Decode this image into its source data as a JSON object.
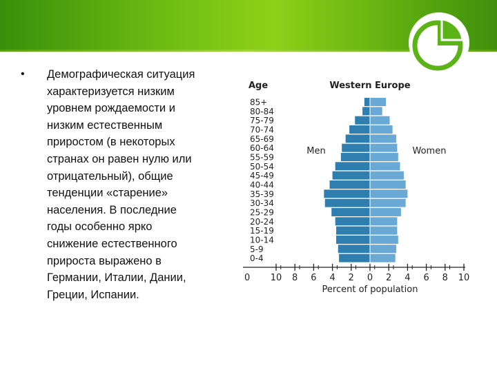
{
  "slide": {
    "bullet_symbol": "•",
    "bullet_text": "Демографическая ситуация\nхарактеризуется низким\nуровнем рождаемости и\nнизким естественным\nприростом (в некоторых\nстранах он равен нулю или\nотрицательный), общие\nтенденции «старение»\nнаселения. В последние\nгоды особенно ярко\nснижение естественного\nприроста выражено в\nГермании, Италии, Дании,\nГреции, Испании."
  },
  "colors": {
    "men_bar": "#2e7fb0",
    "women_bar": "#6aa9d6",
    "header_green": "#6fbf12",
    "logo_green": "#5cb317"
  },
  "chart_data": {
    "type": "bar",
    "orientation": "horizontal",
    "title": "Western Europe",
    "age_label": "Age",
    "xlabel": "Percent of population",
    "left_label": "Men",
    "right_label": "Women",
    "categories": [
      "85+",
      "80-84",
      "75-79",
      "70-74",
      "65-69",
      "60-64",
      "55-59",
      "50-54",
      "45-49",
      "40-44",
      "35-39",
      "30-34",
      "25-29",
      "20-24",
      "15-19",
      "10-14",
      "5-9",
      "0-4"
    ],
    "series": [
      {
        "name": "Men",
        "values": [
          0.6,
          0.8,
          1.6,
          2.2,
          2.6,
          3.0,
          3.1,
          3.7,
          4.0,
          4.3,
          4.9,
          4.8,
          4.1,
          3.7,
          3.6,
          3.6,
          3.4,
          3.3
        ]
      },
      {
        "name": "Women",
        "values": [
          1.7,
          1.3,
          2.1,
          2.4,
          2.8,
          2.9,
          3.0,
          3.2,
          3.6,
          3.8,
          4.0,
          3.8,
          3.3,
          2.9,
          2.9,
          3.0,
          2.8,
          2.7
        ]
      }
    ],
    "x_ticks": [
      "0",
      "10",
      "8",
      "6",
      "4",
      "2",
      "0",
      "2",
      "4",
      "6",
      "8",
      "10"
    ],
    "xlim": [
      -10,
      10
    ],
    "grid": false
  }
}
